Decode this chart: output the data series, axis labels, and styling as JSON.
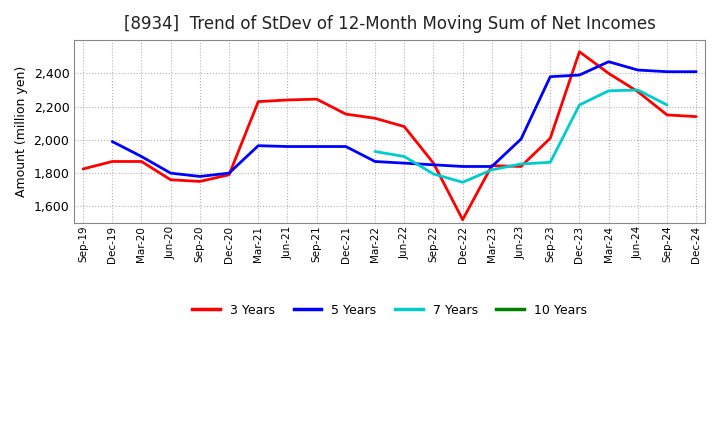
{
  "title": "[8934]  Trend of StDev of 12-Month Moving Sum of Net Incomes",
  "ylabel": "Amount (million yen)",
  "x_labels": [
    "Sep-19",
    "Dec-19",
    "Mar-20",
    "Jun-20",
    "Sep-20",
    "Dec-20",
    "Mar-21",
    "Jun-21",
    "Sep-21",
    "Dec-21",
    "Mar-22",
    "Jun-22",
    "Sep-22",
    "Dec-22",
    "Mar-23",
    "Jun-23",
    "Sep-23",
    "Dec-23",
    "Mar-24",
    "Jun-24",
    "Sep-24",
    "Dec-24"
  ],
  "series": {
    "3 Years": {
      "color": "#FF0000",
      "values": [
        1825,
        1870,
        1870,
        1760,
        1750,
        1790,
        2230,
        2240,
        2245,
        2155,
        2130,
        2080,
        1860,
        1520,
        1845,
        1840,
        2010,
        2530,
        2400,
        2290,
        2150,
        2140
      ]
    },
    "5 Years": {
      "color": "#0000FF",
      "values": [
        null,
        1990,
        1900,
        1800,
        1780,
        1800,
        1965,
        1960,
        1960,
        1960,
        1870,
        1860,
        1850,
        1840,
        1840,
        2005,
        2380,
        2390,
        2470,
        2420,
        2410,
        2410
      ]
    },
    "7 Years": {
      "color": "#00CCCC",
      "values": [
        null,
        null,
        null,
        null,
        null,
        null,
        null,
        null,
        null,
        null,
        1930,
        1900,
        1795,
        1745,
        1820,
        1855,
        1865,
        2210,
        2295,
        2300,
        2210,
        null
      ]
    },
    "10 Years": {
      "color": "#008000",
      "values": [
        null,
        null,
        null,
        null,
        null,
        null,
        null,
        null,
        null,
        null,
        null,
        null,
        null,
        null,
        null,
        null,
        null,
        null,
        null,
        null,
        null,
        null
      ]
    }
  },
  "ylim": [
    1500,
    2600
  ],
  "yticks": [
    1600,
    1800,
    2000,
    2200,
    2400
  ],
  "background_color": "#FFFFFF",
  "grid_color": "#AAAAAA",
  "title_fontsize": 12,
  "legend_items": [
    "3 Years",
    "5 Years",
    "7 Years",
    "10 Years"
  ],
  "legend_colors": [
    "#FF0000",
    "#0000FF",
    "#00CCCC",
    "#008000"
  ]
}
